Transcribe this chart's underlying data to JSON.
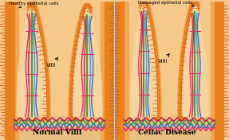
{
  "bg_color": "#f5c98a",
  "orange_dark": "#d4601a",
  "orange_mid": "#e8821e",
  "orange_light": "#f0a858",
  "flesh_color": "#f5d4a0",
  "flesh_inner": "#fae8c8",
  "pink_color": "#e0306a",
  "blue_color": "#3070c0",
  "blue_light": "#6090d8",
  "green_color": "#389838",
  "red_color": "#c82050",
  "magenta_color": "#d040a0",
  "title_left": "Normal Villi",
  "title_right": "Celiac Disease",
  "label_left": "Healthy epithelial cells",
  "label_right": "Damaged epithelial cells",
  "villi_label": "Villi",
  "fig_width": 2.87,
  "fig_height": 1.76
}
